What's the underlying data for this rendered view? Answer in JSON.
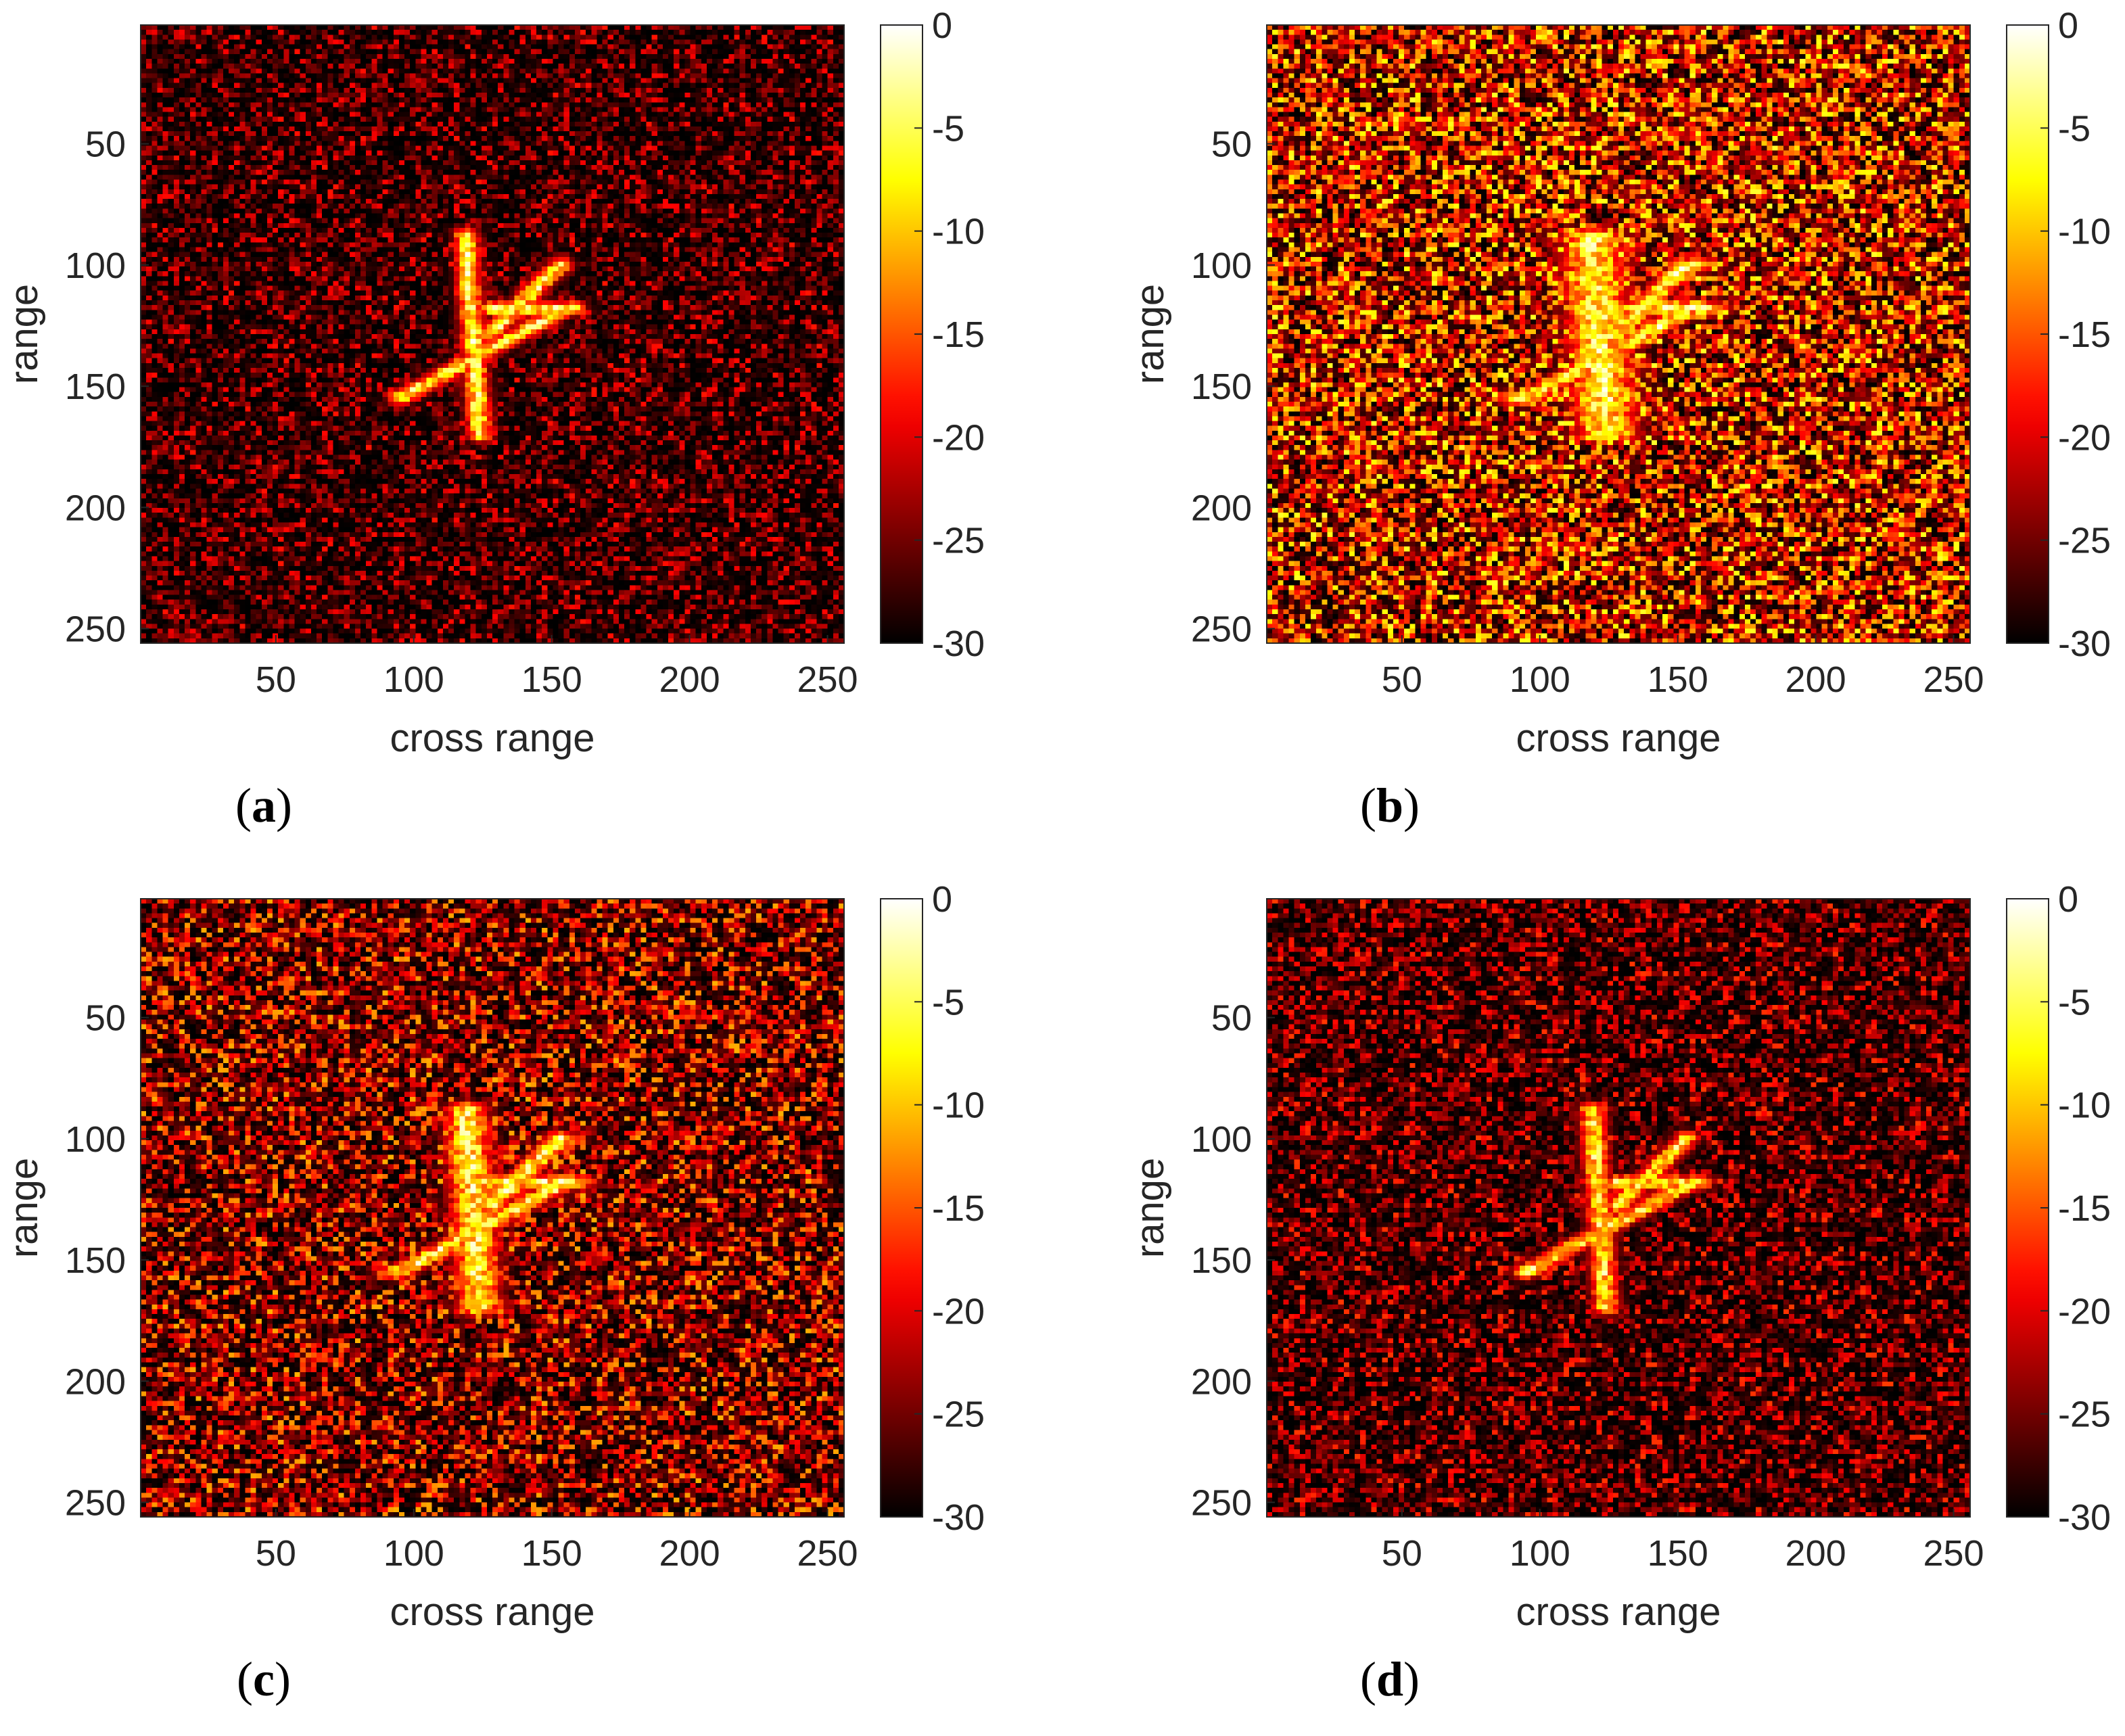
{
  "chart_data": [
    {
      "type": "heatmap",
      "panel_label": "a",
      "xlabel": "cross range",
      "ylabel": "range",
      "xlim": [
        1,
        256
      ],
      "ylim": [
        256,
        1
      ],
      "xticks": [
        50,
        100,
        150,
        200,
        250
      ],
      "yticks": [
        50,
        100,
        150,
        200,
        250
      ],
      "colorbar": {
        "ticks": [
          0,
          -5,
          -10,
          -15,
          -20,
          -25,
          -30
        ],
        "range": [
          -30,
          0
        ],
        "colormap": "hot"
      },
      "noise_level": 0.22,
      "target_intensity": 1.0,
      "smear": 0.15
    },
    {
      "type": "heatmap",
      "panel_label": "b",
      "xlabel": "cross range",
      "ylabel": "range",
      "xlim": [
        1,
        256
      ],
      "ylim": [
        256,
        1
      ],
      "xticks": [
        50,
        100,
        150,
        200,
        250
      ],
      "yticks": [
        50,
        100,
        150,
        200,
        250
      ],
      "colorbar": {
        "ticks": [
          0,
          -5,
          -10,
          -15,
          -20,
          -25,
          -30
        ],
        "range": [
          -30,
          0
        ],
        "colormap": "hot"
      },
      "noise_level": 0.78,
      "target_intensity": 1.0,
      "smear": 1.0
    },
    {
      "type": "heatmap",
      "panel_label": "c",
      "xlabel": "cross range",
      "ylabel": "range",
      "xlim": [
        1,
        256
      ],
      "ylim": [
        256,
        1
      ],
      "xticks": [
        50,
        100,
        150,
        200,
        250
      ],
      "yticks": [
        50,
        100,
        150,
        200,
        250
      ],
      "colorbar": {
        "ticks": [
          0,
          -5,
          -10,
          -15,
          -20,
          -25,
          -30
        ],
        "range": [
          -30,
          0
        ],
        "colormap": "hot"
      },
      "noise_level": 0.55,
      "target_intensity": 1.0,
      "smear": 0.55
    },
    {
      "type": "heatmap",
      "panel_label": "d",
      "xlabel": "cross range",
      "ylabel": "range",
      "xlim": [
        1,
        256
      ],
      "ylim": [
        256,
        1
      ],
      "xticks": [
        50,
        100,
        150,
        200,
        250
      ],
      "yticks": [
        50,
        100,
        150,
        200,
        250
      ],
      "colorbar": {
        "ticks": [
          0,
          -5,
          -10,
          -15,
          -20,
          -25,
          -30
        ],
        "range": [
          -30,
          0
        ],
        "colormap": "hot"
      },
      "noise_level": 0.3,
      "target_intensity": 0.95,
      "smear": 0.2
    }
  ]
}
